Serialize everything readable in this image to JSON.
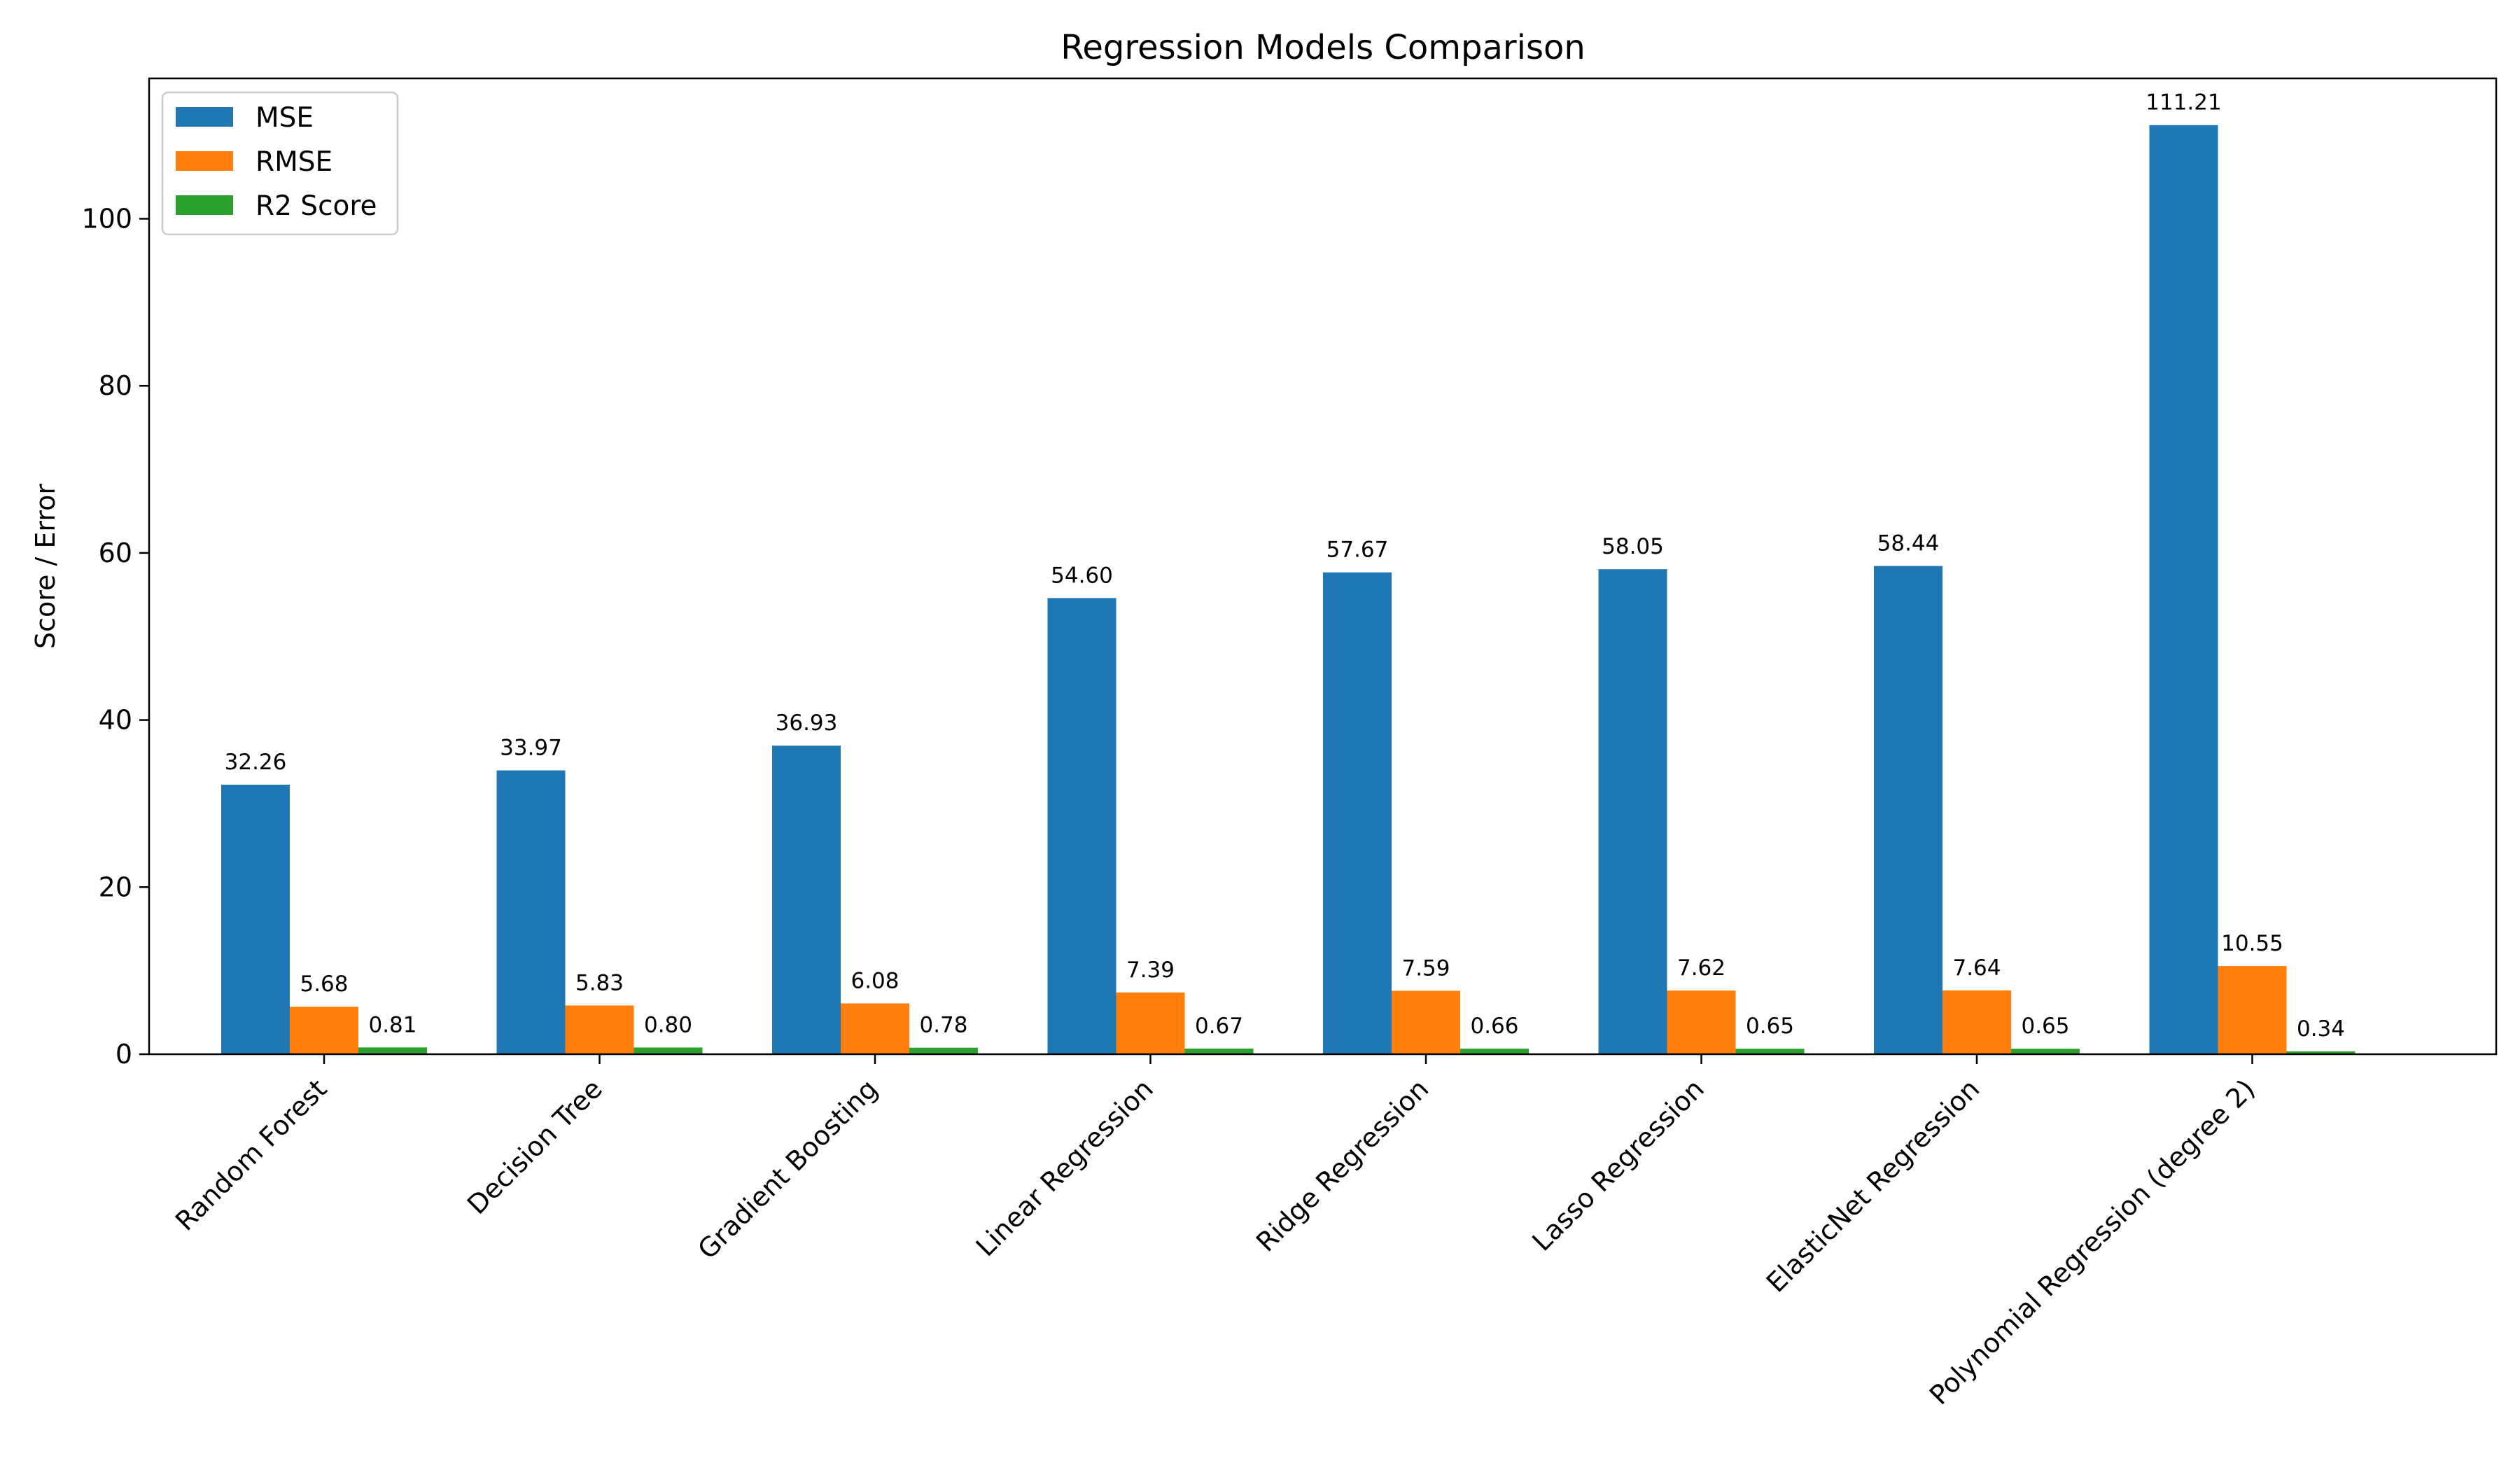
{
  "chart_data": {
    "type": "bar",
    "title": "Regression Models Comparison",
    "xlabel": "",
    "ylabel": "Score / Error",
    "ylim": [
      0,
      116.8
    ],
    "yticks": [
      0,
      20,
      40,
      60,
      80,
      100
    ],
    "grid": false,
    "legend_position": "top-left",
    "categories": [
      "Random Forest",
      "Decision Tree",
      "Gradient Boosting",
      "Linear Regression",
      "Ridge Regression",
      "Lasso Regression",
      "ElasticNet Regression",
      "Polynomial Regression (degree 2)"
    ],
    "series": [
      {
        "name": "MSE",
        "color": "#1f77b4",
        "values": [
          32.26,
          33.97,
          36.93,
          54.6,
          57.67,
          58.05,
          58.44,
          111.21
        ],
        "labels": [
          "32.26",
          "33.97",
          "36.93",
          "54.60",
          "57.67",
          "58.05",
          "58.44",
          "111.21"
        ]
      },
      {
        "name": "RMSE",
        "color": "#ff7f0e",
        "values": [
          5.68,
          5.83,
          6.08,
          7.39,
          7.59,
          7.62,
          7.64,
          10.55
        ],
        "labels": [
          "5.68",
          "5.83",
          "6.08",
          "7.39",
          "7.59",
          "7.62",
          "7.64",
          "10.55"
        ]
      },
      {
        "name": "R2 Score",
        "color": "#2ca02c",
        "values": [
          0.81,
          0.8,
          0.78,
          0.67,
          0.66,
          0.65,
          0.65,
          0.34
        ],
        "labels": [
          "0.81",
          "0.80",
          "0.78",
          "0.67",
          "0.66",
          "0.65",
          "0.65",
          "0.34"
        ]
      }
    ]
  }
}
